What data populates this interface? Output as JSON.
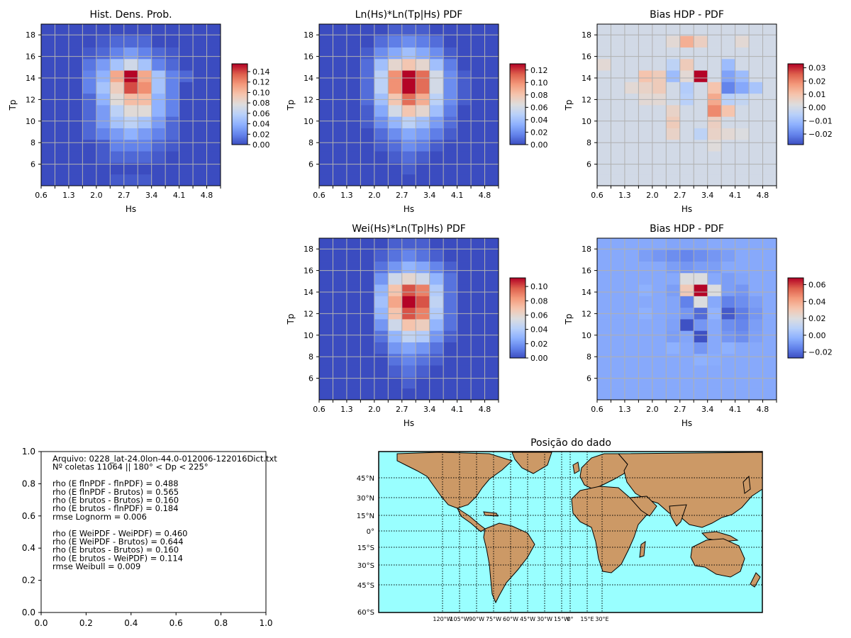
{
  "figure": {
    "background": "#ffffff"
  },
  "shared_axes": {
    "xlabel": "Hs",
    "ylabel": "Tp",
    "x_tick_labels": [
      "0.6",
      "1.3",
      "2.0",
      "2.7",
      "3.4",
      "4.1",
      "4.8"
    ],
    "y_tick_labels": [
      "6",
      "8",
      "10",
      "12",
      "14",
      "16",
      "18"
    ]
  },
  "chart_data": [
    {
      "id": "p1",
      "type": "heatmap",
      "title": "Hist. Dens. Prob.",
      "xlabel": "Hs",
      "ylabel": "Tp",
      "colormap": "coolwarm",
      "colorbar": {
        "min": 0.0,
        "max": 0.155,
        "ticks": [
          "0.00",
          "0.02",
          "0.04",
          "0.06",
          "0.08",
          "0.10",
          "0.12",
          "0.14"
        ]
      },
      "grid": true,
      "z": [
        [
          0.0,
          0.0,
          0.0,
          0.0,
          0.0,
          0.005,
          0.005,
          0.005,
          0.0,
          0.0,
          0.0,
          0.0,
          0.0
        ],
        [
          0.0,
          0.0,
          0.0,
          0.0,
          0.0,
          0.0,
          0.0,
          0.0,
          0.0,
          0.0,
          0.0,
          0.0,
          0.0
        ],
        [
          0.0,
          0.0,
          0.0,
          0.0,
          0.005,
          0.01,
          0.01,
          0.01,
          0.005,
          0.0,
          0.0,
          0.0,
          0.0
        ],
        [
          0.0,
          0.0,
          0.0,
          0.0,
          0.005,
          0.02,
          0.02,
          0.02,
          0.01,
          0.005,
          0.0,
          0.0,
          0.0
        ],
        [
          0.0,
          0.0,
          0.0,
          0.01,
          0.02,
          0.03,
          0.04,
          0.03,
          0.02,
          0.01,
          0.0,
          0.0,
          0.0
        ],
        [
          0.0,
          0.0,
          0.0,
          0.01,
          0.03,
          0.05,
          0.06,
          0.05,
          0.03,
          0.01,
          0.0,
          0.0,
          0.0
        ],
        [
          0.0,
          0.0,
          0.0,
          0.01,
          0.03,
          0.06,
          0.08,
          0.08,
          0.04,
          0.02,
          0.0,
          0.0,
          0.0
        ],
        [
          0.0,
          0.0,
          0.0,
          0.01,
          0.04,
          0.08,
          0.1,
          0.1,
          0.04,
          0.02,
          0.0,
          0.0,
          0.0
        ],
        [
          0.0,
          0.0,
          0.0,
          0.02,
          0.05,
          0.09,
          0.14,
          0.12,
          0.05,
          0.02,
          0.0,
          0.0,
          0.0
        ],
        [
          0.0,
          0.0,
          0.0,
          0.02,
          0.04,
          0.11,
          0.155,
          0.11,
          0.05,
          0.02,
          0.01,
          0.0,
          0.0
        ],
        [
          0.0,
          0.0,
          0.0,
          0.015,
          0.03,
          0.05,
          0.07,
          0.05,
          0.02,
          0.01,
          0.0,
          0.0,
          0.0
        ],
        [
          0.0,
          0.0,
          0.0,
          0.005,
          0.01,
          0.02,
          0.03,
          0.02,
          0.01,
          0.005,
          0.0,
          0.0,
          0.0
        ],
        [
          0.0,
          0.0,
          0.0,
          0.0,
          0.005,
          0.01,
          0.01,
          0.01,
          0.0,
          0.0,
          0.0,
          0.0,
          0.0
        ],
        [
          0.0,
          0.0,
          0.0,
          0.0,
          0.0,
          0.0,
          0.0,
          0.0,
          0.0,
          0.0,
          0.0,
          0.0,
          0.0
        ]
      ]
    },
    {
      "id": "p2",
      "type": "heatmap",
      "title": "Ln(Hs)*Ln(Tp|Hs) PDF",
      "xlabel": "Hs",
      "ylabel": "Tp",
      "colormap": "coolwarm",
      "colorbar": {
        "min": 0.0,
        "max": 0.13,
        "ticks": [
          "0.00",
          "0.02",
          "0.04",
          "0.06",
          "0.08",
          "0.10",
          "0.12"
        ]
      },
      "grid": true,
      "z": [
        [
          0.0,
          0.0,
          0.0,
          0.0,
          0.0,
          0.0,
          0.0,
          0.0,
          0.0,
          0.0,
          0.0,
          0.0,
          0.0
        ],
        [
          0.0,
          0.0,
          0.0,
          0.0,
          0.0,
          0.0,
          0.005,
          0.0,
          0.0,
          0.0,
          0.0,
          0.0,
          0.0
        ],
        [
          0.0,
          0.0,
          0.0,
          0.0,
          0.0,
          0.005,
          0.01,
          0.005,
          0.0,
          0.0,
          0.0,
          0.0,
          0.0
        ],
        [
          0.0,
          0.0,
          0.0,
          0.0,
          0.005,
          0.01,
          0.02,
          0.015,
          0.005,
          0.0,
          0.0,
          0.0,
          0.0
        ],
        [
          0.0,
          0.0,
          0.0,
          0.0,
          0.01,
          0.02,
          0.03,
          0.025,
          0.015,
          0.005,
          0.0,
          0.0,
          0.0
        ],
        [
          0.0,
          0.0,
          0.0,
          0.005,
          0.02,
          0.035,
          0.05,
          0.04,
          0.025,
          0.01,
          0.0,
          0.0,
          0.0
        ],
        [
          0.0,
          0.0,
          0.0,
          0.005,
          0.03,
          0.06,
          0.08,
          0.07,
          0.04,
          0.015,
          0.0,
          0.0,
          0.0
        ],
        [
          0.0,
          0.0,
          0.0,
          0.01,
          0.04,
          0.08,
          0.11,
          0.09,
          0.05,
          0.02,
          0.005,
          0.0,
          0.0
        ],
        [
          0.0,
          0.0,
          0.0,
          0.01,
          0.05,
          0.1,
          0.13,
          0.11,
          0.06,
          0.02,
          0.005,
          0.0,
          0.0
        ],
        [
          0.0,
          0.0,
          0.0,
          0.01,
          0.05,
          0.1,
          0.13,
          0.11,
          0.06,
          0.02,
          0.005,
          0.0,
          0.0
        ],
        [
          0.0,
          0.0,
          0.0,
          0.01,
          0.04,
          0.07,
          0.08,
          0.07,
          0.04,
          0.015,
          0.0,
          0.0,
          0.0
        ],
        [
          0.0,
          0.0,
          0.0,
          0.005,
          0.02,
          0.03,
          0.04,
          0.03,
          0.02,
          0.005,
          0.0,
          0.0,
          0.0
        ],
        [
          0.0,
          0.0,
          0.0,
          0.0,
          0.01,
          0.015,
          0.02,
          0.015,
          0.01,
          0.0,
          0.0,
          0.0,
          0.0
        ],
        [
          0.0,
          0.0,
          0.0,
          0.0,
          0.0,
          0.005,
          0.005,
          0.005,
          0.0,
          0.0,
          0.0,
          0.0,
          0.0
        ]
      ]
    },
    {
      "id": "p3",
      "type": "heatmap",
      "title": "Bias HDP - PDF",
      "xlabel": "Hs",
      "ylabel": "Tp",
      "colormap": "coolwarm",
      "colorbar": {
        "min": -0.028,
        "max": 0.033,
        "ticks": [
          "−0.02",
          "−0.01",
          "0.00",
          "0.01",
          "0.02",
          "0.03"
        ]
      },
      "grid": true,
      "z": [
        [
          0.0,
          0.0,
          0.0,
          0.0,
          0.0,
          0.0,
          0.0,
          0.0,
          0.0,
          0.0,
          0.0,
          0.0,
          0.0
        ],
        [
          0.0,
          0.0,
          0.0,
          0.0,
          0.0,
          0.0,
          0.0,
          0.0,
          0.0,
          0.0,
          0.0,
          0.0,
          0.0
        ],
        [
          0.0,
          0.0,
          0.0,
          0.0,
          0.0,
          0.0,
          0.0,
          0.0,
          0.0,
          0.0,
          0.0,
          0.0,
          0.0
        ],
        [
          0.0,
          0.0,
          0.0,
          0.0,
          0.0,
          0.0,
          0.0,
          0.0,
          0.003,
          0.0,
          0.0,
          0.0,
          0.0
        ],
        [
          0.0,
          0.0,
          0.0,
          0.0,
          0.0,
          0.006,
          0.0,
          -0.004,
          0.006,
          0.004,
          0.002,
          0.0,
          0.0
        ],
        [
          0.0,
          0.0,
          0.0,
          0.0,
          0.0,
          0.008,
          0.0,
          0.0,
          0.007,
          0.0,
          0.0,
          0.0,
          0.0
        ],
        [
          0.0,
          0.0,
          0.0,
          0.0,
          0.0,
          0.006,
          0.0,
          0.0,
          0.02,
          0.01,
          0.0,
          0.0,
          0.0
        ],
        [
          0.0,
          0.0,
          0.0,
          0.004,
          0.004,
          0.0,
          -0.005,
          0.0,
          0.015,
          -0.005,
          -0.003,
          0.0,
          0.0
        ],
        [
          0.0,
          0.0,
          0.004,
          0.006,
          0.008,
          0.0,
          -0.006,
          0.0,
          0.01,
          -0.02,
          -0.014,
          -0.008,
          0.0
        ],
        [
          0.0,
          0.0,
          0.0,
          0.01,
          0.008,
          -0.01,
          0.004,
          0.033,
          0.0,
          -0.015,
          -0.01,
          0.0,
          0.0
        ],
        [
          0.004,
          0.0,
          0.0,
          0.0,
          0.0,
          -0.004,
          0.008,
          0.0,
          0.0,
          -0.01,
          0.0,
          0.0,
          0.0
        ],
        [
          0.0,
          0.0,
          0.0,
          0.0,
          0.0,
          0.0,
          0.0,
          0.0,
          0.0,
          0.0,
          0.0,
          0.0,
          0.0
        ],
        [
          0.0,
          0.0,
          0.0,
          0.0,
          0.0,
          0.004,
          0.014,
          0.007,
          0.0,
          0.0,
          0.004,
          0.0,
          0.0
        ],
        [
          0.0,
          0.0,
          0.0,
          0.0,
          0.0,
          0.0,
          0.0,
          0.0,
          0.0,
          0.0,
          0.0,
          0.0,
          0.0
        ]
      ]
    },
    {
      "id": "p4",
      "type": "heatmap",
      "title": "Wei(Hs)*Ln(Tp|Hs) PDF",
      "xlabel": "Hs",
      "ylabel": "Tp",
      "colormap": "coolwarm",
      "colorbar": {
        "min": 0.0,
        "max": 0.112,
        "ticks": [
          "0.00",
          "0.02",
          "0.04",
          "0.06",
          "0.08",
          "0.10"
        ]
      },
      "grid": true,
      "z": [
        [
          0.0,
          0.0,
          0.0,
          0.0,
          0.0,
          0.0,
          0.0,
          0.0,
          0.0,
          0.0,
          0.0,
          0.0,
          0.0
        ],
        [
          0.0,
          0.0,
          0.0,
          0.0,
          0.0,
          0.0,
          0.005,
          0.0,
          0.0,
          0.0,
          0.0,
          0.0,
          0.0
        ],
        [
          0.0,
          0.0,
          0.0,
          0.0,
          0.0,
          0.005,
          0.01,
          0.005,
          0.0,
          0.0,
          0.0,
          0.0,
          0.0
        ],
        [
          0.0,
          0.0,
          0.0,
          0.0,
          0.0,
          0.01,
          0.015,
          0.01,
          0.005,
          0.0,
          0.0,
          0.0,
          0.0
        ],
        [
          0.0,
          0.0,
          0.0,
          0.0,
          0.005,
          0.02,
          0.025,
          0.02,
          0.01,
          0.0,
          0.0,
          0.0,
          0.0
        ],
        [
          0.0,
          0.0,
          0.0,
          0.0,
          0.01,
          0.03,
          0.045,
          0.04,
          0.02,
          0.005,
          0.0,
          0.0,
          0.0
        ],
        [
          0.0,
          0.0,
          0.0,
          0.0,
          0.02,
          0.05,
          0.07,
          0.065,
          0.03,
          0.01,
          0.0,
          0.0,
          0.0
        ],
        [
          0.0,
          0.0,
          0.0,
          0.0,
          0.03,
          0.07,
          0.1,
          0.09,
          0.04,
          0.01,
          0.0,
          0.0,
          0.0
        ],
        [
          0.0,
          0.0,
          0.0,
          0.0,
          0.035,
          0.08,
          0.112,
          0.1,
          0.045,
          0.01,
          0.0,
          0.0,
          0.0
        ],
        [
          0.0,
          0.0,
          0.0,
          0.0,
          0.03,
          0.07,
          0.1,
          0.09,
          0.04,
          0.01,
          0.0,
          0.0,
          0.0
        ],
        [
          0.0,
          0.0,
          0.0,
          0.0,
          0.02,
          0.05,
          0.06,
          0.05,
          0.03,
          0.01,
          0.0,
          0.0,
          0.0
        ],
        [
          0.0,
          0.0,
          0.0,
          0.0,
          0.01,
          0.02,
          0.03,
          0.025,
          0.015,
          0.005,
          0.0,
          0.0,
          0.0
        ],
        [
          0.0,
          0.0,
          0.0,
          0.0,
          0.005,
          0.01,
          0.015,
          0.01,
          0.005,
          0.0,
          0.0,
          0.0,
          0.0
        ],
        [
          0.0,
          0.0,
          0.0,
          0.0,
          0.0,
          0.005,
          0.005,
          0.005,
          0.0,
          0.0,
          0.0,
          0.0,
          0.0
        ]
      ]
    },
    {
      "id": "p5",
      "type": "heatmap",
      "title": "Bias HDP - PDF",
      "xlabel": "Hs",
      "ylabel": "Tp",
      "colormap": "coolwarm",
      "colorbar": {
        "min": -0.027,
        "max": 0.068,
        "ticks": [
          "−0.02",
          "0.00",
          "0.02",
          "0.04",
          "0.06"
        ]
      },
      "grid": true,
      "z": [
        [
          -0.005,
          -0.005,
          -0.005,
          -0.005,
          -0.005,
          -0.005,
          -0.005,
          -0.005,
          -0.005,
          -0.005,
          -0.005,
          -0.005,
          -0.005
        ],
        [
          -0.005,
          -0.005,
          -0.005,
          -0.005,
          -0.005,
          -0.005,
          -0.005,
          -0.005,
          -0.005,
          -0.005,
          -0.005,
          -0.005,
          -0.005
        ],
        [
          -0.005,
          -0.005,
          -0.005,
          -0.005,
          -0.005,
          -0.005,
          -0.005,
          -0.005,
          -0.005,
          -0.005,
          -0.005,
          -0.005,
          -0.005
        ],
        [
          -0.005,
          -0.005,
          -0.005,
          -0.005,
          -0.005,
          -0.005,
          -0.005,
          -0.003,
          -0.004,
          -0.005,
          -0.005,
          -0.005,
          -0.005
        ],
        [
          -0.005,
          -0.005,
          -0.005,
          -0.005,
          -0.005,
          -0.003,
          -0.005,
          -0.01,
          -0.005,
          -0.003,
          -0.005,
          -0.005,
          -0.005
        ],
        [
          -0.005,
          -0.005,
          -0.005,
          -0.005,
          -0.005,
          -0.008,
          -0.006,
          -0.026,
          -0.005,
          -0.01,
          -0.012,
          -0.007,
          -0.005
        ],
        [
          -0.005,
          -0.005,
          -0.005,
          -0.005,
          -0.005,
          -0.007,
          -0.026,
          -0.01,
          -0.005,
          -0.012,
          -0.014,
          -0.008,
          -0.005
        ],
        [
          -0.005,
          -0.005,
          -0.005,
          -0.003,
          -0.005,
          -0.006,
          -0.01,
          -0.02,
          -0.002,
          -0.024,
          -0.016,
          -0.01,
          -0.005
        ],
        [
          -0.005,
          -0.005,
          -0.005,
          -0.005,
          -0.005,
          -0.006,
          -0.015,
          0.02,
          -0.005,
          -0.015,
          -0.012,
          -0.008,
          -0.005
        ],
        [
          -0.005,
          -0.005,
          -0.005,
          -0.003,
          -0.005,
          -0.008,
          0.03,
          0.068,
          0.02,
          -0.008,
          -0.01,
          -0.005,
          -0.005
        ],
        [
          -0.005,
          -0.005,
          -0.005,
          -0.005,
          -0.005,
          -0.005,
          0.02,
          0.02,
          -0.005,
          -0.008,
          -0.006,
          -0.005,
          -0.005
        ],
        [
          -0.005,
          -0.005,
          -0.005,
          -0.005,
          -0.005,
          -0.008,
          -0.01,
          -0.008,
          -0.008,
          -0.005,
          -0.005,
          -0.005,
          -0.005
        ],
        [
          -0.005,
          -0.005,
          -0.005,
          -0.008,
          -0.01,
          -0.012,
          -0.014,
          -0.012,
          -0.01,
          -0.008,
          -0.005,
          -0.005,
          -0.005
        ],
        [
          -0.005,
          -0.005,
          -0.005,
          -0.005,
          -0.005,
          -0.006,
          -0.006,
          -0.006,
          -0.005,
          -0.005,
          -0.005,
          -0.005,
          -0.005
        ]
      ]
    }
  ],
  "stats_panel": {
    "xlim": [
      0,
      1
    ],
    "ylim": [
      0,
      1
    ],
    "x_ticks": [
      "0.0",
      "0.2",
      "0.4",
      "0.6",
      "0.8",
      "1.0"
    ],
    "y_ticks": [
      "0.0",
      "0.2",
      "0.4",
      "0.6",
      "0.8",
      "1.0"
    ],
    "lines": [
      "Arquivo: 0228_lat-24.0lon-44.0-012006-122016Dict.txt",
      "Nº coletas 11064 || 180° < Dp < 225°",
      "",
      "rho (E flnPDF - flnPDF) = 0.488",
      "rho (E flnPDF - Brutos) = 0.565",
      "rho (E brutos - Brutos) = 0.160",
      "rho (E brutos - flnPDF) = 0.184",
      "rmse Lognorm = 0.006",
      "",
      "rho (E WeiPDF - WeiPDF) = 0.460",
      "rho (E WeiPDF - Brutos) = 0.644",
      "rho (E brutos - Brutos) = 0.160",
      "rho (E brutos - WeiPDF) = 0.114",
      "rmse Weibull = 0.009"
    ]
  },
  "map_panel": {
    "title": "Posição do dado",
    "ocean_color": "#99ffff",
    "land_color": "#cc9966",
    "lat_labels": [
      "45°N",
      "30°N",
      "15°N",
      "0°",
      "15°S",
      "30°S",
      "45°S",
      "60°S"
    ],
    "lon_labels": [
      "120°W",
      "105°W",
      "90°W",
      "75°W",
      "60°W",
      "45°W",
      "30°W",
      "15°W",
      "0°",
      "15°E",
      "30°E"
    ]
  }
}
